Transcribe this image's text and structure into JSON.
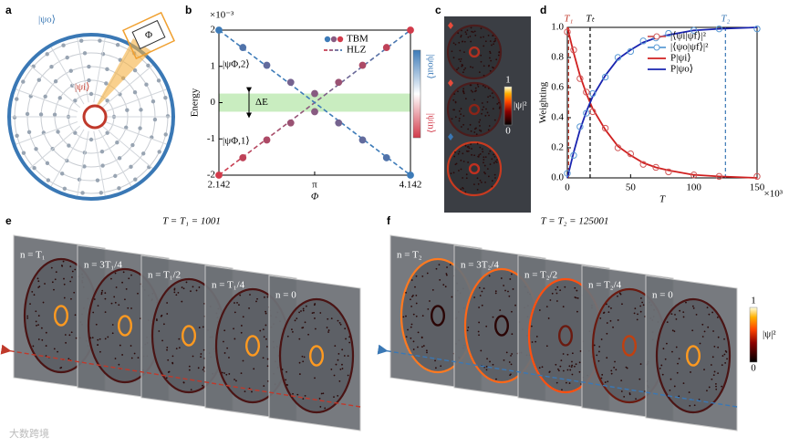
{
  "panel_labels": [
    "a",
    "b",
    "c",
    "d",
    "e",
    "f"
  ],
  "schematic": {
    "outer_state": "|ψo⟩",
    "inner_state": "|ψi⟩",
    "flux": "Φ"
  },
  "chart_data": [
    {
      "type": "line",
      "xlabel": "Φ",
      "ylabel": "Energy",
      "y_scale_label": "×10⁻³",
      "xlim": [
        2.142,
        4.142
      ],
      "xticks": [
        2.142,
        {
          "value": 3.1416,
          "label": "π"
        },
        4.142
      ],
      "ylim": [
        -2,
        2
      ],
      "yticks": [
        -2,
        -1,
        0,
        1,
        2
      ],
      "x": [
        2.142,
        2.392,
        2.642,
        2.892,
        3.142,
        3.392,
        3.642,
        3.892,
        4.142
      ],
      "series": [
        {
          "name": "TBM",
          "style": "dots",
          "colors": [
            "#3d7bb8",
            "#d23a4a"
          ],
          "values": [
            2.0,
            1.52,
            1.03,
            0.56,
            0.25,
            0.56,
            1.03,
            1.52,
            2.0
          ]
        },
        {
          "style": "dots",
          "colors": [
            "#d23a4a",
            "#3d7bb8"
          ],
          "values": [
            -2.0,
            -1.52,
            -1.03,
            -0.56,
            -0.25,
            -0.56,
            -1.03,
            -1.52,
            -2.0
          ]
        },
        {
          "name": "HLZ",
          "style": "dashed",
          "colors": [
            "#d23a4a",
            "#3d7bb8"
          ],
          "values": [
            -2.0,
            -1.5,
            -1.0,
            -0.5,
            0.0,
            0.5,
            1.0,
            1.5,
            2.0
          ]
        },
        {
          "style": "dashed",
          "colors": [
            "#3d7bb8",
            "#3d7bb8"
          ],
          "values": [
            2.0,
            1.5,
            1.0,
            0.5,
            0.0,
            -0.5,
            -1.0,
            -1.5,
            -2.0
          ]
        }
      ],
      "shaded_band": {
        "ylim": [
          -0.25,
          0.25
        ],
        "color": "#c9edc0",
        "label": "ΔE"
      },
      "annotations": [
        "|ψΦ,2⟩",
        "|ψΦ,1⟩"
      ],
      "colorbar": {
        "top": "|ψout⟩",
        "bottom": "|ψin⟩",
        "colors": [
          "#3d7bb8",
          "#ffffff",
          "#d23a4a"
        ]
      },
      "legend": "upper right"
    },
    {
      "type": "line",
      "xlabel": "T",
      "ylabel": "Weighting",
      "x_scale_label": "×10³",
      "xlim": [
        0,
        150
      ],
      "xticks": [
        0,
        50,
        100,
        150
      ],
      "ylim": [
        0,
        1
      ],
      "yticks": [
        {
          "value": 0,
          "label": "0.0"
        },
        {
          "value": 0.2,
          "label": "0.2"
        },
        {
          "value": 0.4,
          "label": "0.4"
        },
        {
          "value": 0.6,
          "label": "0.6"
        },
        {
          "value": 0.8,
          "label": "0.8"
        },
        {
          "value": 1,
          "label": "1.0"
        }
      ],
      "x": [
        0,
        5,
        10,
        15,
        20,
        30,
        40,
        50,
        60,
        70,
        80,
        100,
        120,
        150
      ],
      "series": [
        {
          "name": "|⟨ψi|ψf⟩|²",
          "style": "circles",
          "color": "#d05a5a",
          "values": [
            0.97,
            0.85,
            0.66,
            0.57,
            0.44,
            0.33,
            0.2,
            0.16,
            0.09,
            0.07,
            0.04,
            0.02,
            0.01,
            0.01
          ]
        },
        {
          "name": "|⟨ψo|ψf⟩|²",
          "style": "circles",
          "color": "#5b9bd5",
          "values": [
            0.03,
            0.15,
            0.34,
            0.43,
            0.56,
            0.67,
            0.8,
            0.84,
            0.91,
            0.93,
            0.96,
            0.98,
            0.99,
            0.99
          ]
        },
        {
          "name": "P|ψi⟩",
          "style": "solid",
          "color": "#d02020",
          "values": [
            1,
            0.83,
            0.68,
            0.56,
            0.46,
            0.32,
            0.21,
            0.15,
            0.1,
            0.07,
            0.05,
            0.02,
            0.01,
            0
          ]
        },
        {
          "name": "P|ψo⟩",
          "style": "solid",
          "color": "#1a24b0",
          "values": [
            0,
            0.17,
            0.32,
            0.44,
            0.54,
            0.68,
            0.79,
            0.85,
            0.9,
            0.93,
            0.95,
            0.98,
            0.99,
            1
          ]
        }
      ],
      "vlines": [
        {
          "label": "T₁",
          "value": 1,
          "color": "#c0392b"
        },
        {
          "label": "Tₜ",
          "value": 18,
          "color": "#000000"
        },
        {
          "label": "T₂",
          "value": 125,
          "color": "#3a78b5"
        }
      ],
      "legend": "upper right"
    }
  ],
  "panel_c": {
    "colorbar_ticks": [
      1,
      0
    ],
    "colorbar_label": "|ψ|²"
  },
  "panel_e": {
    "title": "T = T₁ = 1001",
    "slices": [
      "n = T₁",
      "n = 3T₁/4",
      "n = T₁/2",
      "n = T₁/4",
      "n = 0"
    ]
  },
  "panel_f": {
    "title": "T = T₂ = 125001",
    "slices": [
      "n = T₂",
      "n = 3T₂/4",
      "n = T₂/2",
      "n = T₂/4",
      "n = 0"
    ]
  },
  "colorbar": {
    "ticks": [
      1,
      0
    ],
    "label": "|ψ|²"
  },
  "watermark": "大数跨境"
}
